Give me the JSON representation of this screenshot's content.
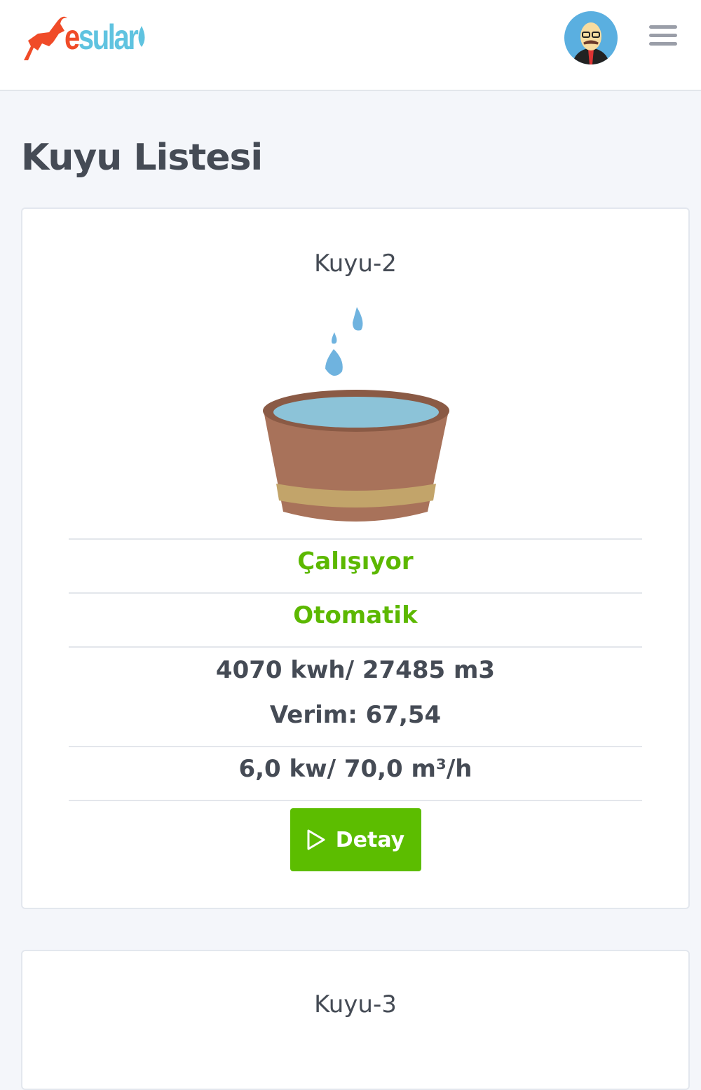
{
  "header": {
    "logo_text_e": "e",
    "logo_text_rest": "sular",
    "logo_icon": "goat-icon",
    "avatar": "user-avatar",
    "menu_icon": "hamburger-menu-icon"
  },
  "page": {
    "title": "Kuyu Listesi"
  },
  "colors": {
    "accent_green": "#5cbd00",
    "logo_red": "#f04b28",
    "logo_blue": "#5fc3e0"
  },
  "wells": [
    {
      "name": "Kuyu-2",
      "status": "Çalışıyor",
      "mode": "Otomatik",
      "energy": "4070 kwh/ 27485 m3",
      "efficiency": "Verim: 67,54",
      "power": "6,0 kw/ 70,0 m³/h",
      "button": "Detay",
      "button_icon": "play-icon"
    },
    {
      "name": "Kuyu-3"
    }
  ]
}
